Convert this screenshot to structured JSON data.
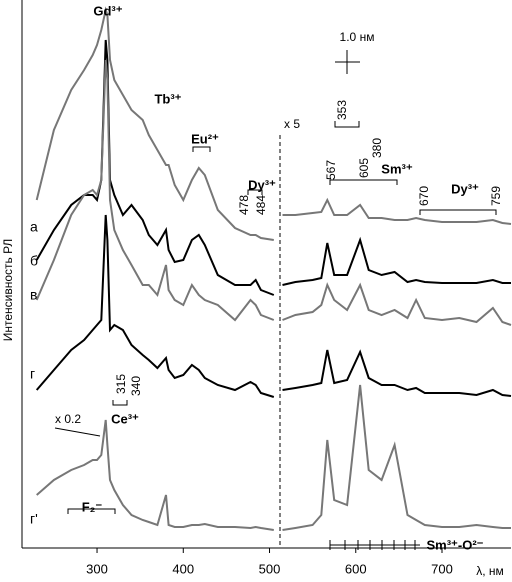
{
  "chart_data": {
    "type": "line",
    "xlabel": "λ, нм",
    "ylabel": "Интенсивность РЛ",
    "xlim": [
      213,
      780
    ],
    "xticks": [
      300,
      400,
      500,
      600,
      700
    ],
    "ylim": [
      0,
      548
    ],
    "x": [
      230,
      250,
      270,
      285,
      295,
      300,
      305,
      310,
      312,
      315,
      320,
      330,
      340,
      353,
      360,
      370,
      380,
      383,
      390,
      400,
      410,
      418,
      425,
      440,
      460,
      478,
      484,
      490,
      505,
      508,
      515,
      530,
      550,
      560,
      567,
      575,
      590,
      605,
      615,
      630,
      645,
      660,
      670,
      680,
      700,
      720,
      740,
      759,
      770,
      780
    ],
    "series": [
      {
        "name": "а",
        "color": "#777777",
        "values": [
          348,
          418,
          458,
          478,
          493,
          503,
          518,
          538,
          533,
          488,
          468,
          453,
          438,
          428,
          413,
          398,
          383,
          383,
          363,
          348,
          368,
          380,
          373,
          338,
          320,
          313,
          313,
          310,
          308,
          null,
          333,
          333,
          335,
          336,
          348,
          333,
          333,
          343,
          330,
          330,
          328,
          328,
          330,
          328,
          326,
          326,
          326,
          328,
          325,
          324
        ]
      },
      {
        "name": "б",
        "color": "#000000",
        "values": [
          288,
          318,
          343,
          353,
          353,
          348,
          368,
          508,
          488,
          368,
          353,
          333,
          343,
          328,
          313,
          303,
          318,
          298,
          286,
          288,
          308,
          313,
          303,
          273,
          263,
          263,
          268,
          258,
          253,
          null,
          263,
          266,
          268,
          270,
          305,
          273,
          273,
          308,
          278,
          273,
          276,
          266,
          268,
          266,
          265,
          265,
          265,
          268,
          265,
          265
        ]
      },
      {
        "name": "в",
        "color": "#777777",
        "values": [
          248,
          288,
          333,
          353,
          358,
          353,
          368,
          488,
          468,
          348,
          318,
          298,
          283,
          263,
          263,
          253,
          283,
          258,
          248,
          243,
          263,
          253,
          248,
          243,
          228,
          248,
          243,
          233,
          228,
          null,
          228,
          233,
          236,
          243,
          263,
          248,
          238,
          263,
          238,
          233,
          238,
          230,
          248,
          230,
          228,
          230,
          226,
          240,
          226,
          223
        ]
      },
      {
        "name": "г",
        "color": "#000000",
        "values": [
          158,
          178,
          198,
          208,
          218,
          223,
          228,
          333,
          308,
          218,
          223,
          218,
          203,
          193,
          188,
          180,
          190,
          178,
          170,
          173,
          183,
          178,
          170,
          163,
          158,
          166,
          163,
          155,
          151,
          null,
          158,
          160,
          163,
          165,
          198,
          165,
          168,
          196,
          170,
          163,
          163,
          158,
          160,
          155,
          155,
          155,
          153,
          158,
          153,
          152
        ]
      },
      {
        "name": "г'",
        "color": "#777777",
        "values": [
          53,
          68,
          78,
          83,
          88,
          88,
          93,
          128,
          103,
          68,
          58,
          43,
          33,
          28,
          26,
          23,
          53,
          23,
          21,
          21,
          23,
          23,
          24,
          21,
          21,
          20,
          21,
          20,
          18,
          null,
          18,
          20,
          23,
          33,
          108,
          48,
          43,
          163,
          78,
          68,
          103,
          33,
          28,
          23,
          21,
          21,
          23,
          21,
          20,
          20
        ]
      }
    ],
    "annotations": [
      "Gd³⁺",
      "353",
      "Tb³⁺",
      "380",
      "Eu²⁺",
      "Dy³⁺",
      "478",
      "484",
      "x 5",
      "567",
      "605",
      "Sm³⁺",
      "670",
      "Dy³⁺",
      "759",
      "1.0 нм",
      "315",
      "340",
      "Ce³⁺",
      "x 0.2",
      "F₂⁻",
      "Sm³⁺-O²⁻"
    ]
  }
}
